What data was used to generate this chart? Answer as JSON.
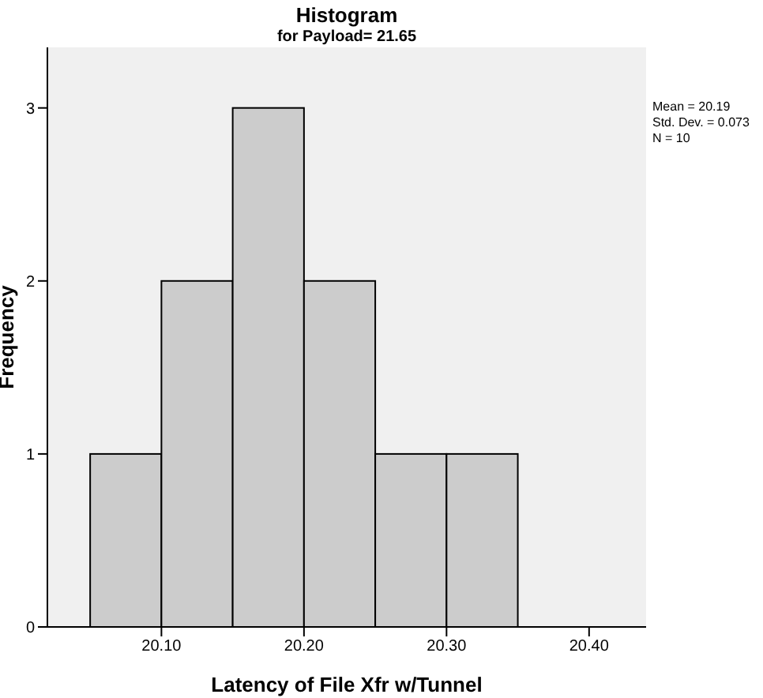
{
  "chart_data": {
    "type": "histogram",
    "title": "Histogram",
    "subtitle": "for Payload= 21.65",
    "xlabel": "Latency of File Xfr w/Tunnel",
    "ylabel": "Frequency",
    "bins": [
      20.05,
      20.1,
      20.15,
      20.2,
      20.25,
      20.3,
      20.35
    ],
    "values": [
      1,
      2,
      3,
      2,
      1,
      1
    ],
    "color": "#cccccc",
    "xlim": [
      20.02,
      20.44
    ],
    "xticks": [
      {
        "value": 20.1,
        "label": "20.10"
      },
      {
        "value": 20.2,
        "label": "20.20"
      },
      {
        "value": 20.3,
        "label": "20.30"
      },
      {
        "value": 20.4,
        "label": "20.40"
      }
    ],
    "ylim": [
      0,
      3.35
    ],
    "yticks": [
      0,
      1,
      2,
      3
    ],
    "annotations": [
      "Mean = 20.19",
      "Std. Dev. = 0.073",
      "N = 10"
    ]
  }
}
